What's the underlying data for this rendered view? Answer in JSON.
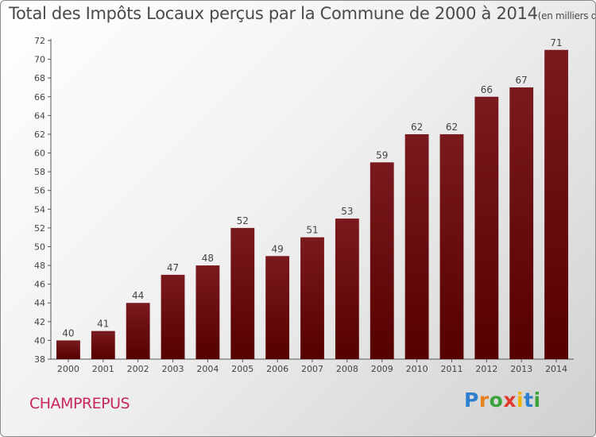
{
  "chart_data": {
    "type": "bar",
    "title": "Total des Impôts Locaux perçus par la Commune de 2000 à 2014",
    "subtitle": "(en milliers d'€)",
    "categories": [
      "2000",
      "2001",
      "2002",
      "2003",
      "2004",
      "2005",
      "2006",
      "2007",
      "2008",
      "2009",
      "2010",
      "2011",
      "2012",
      "2013",
      "2014"
    ],
    "values": [
      40,
      41,
      44,
      47,
      48,
      52,
      49,
      51,
      53,
      59,
      62,
      62,
      66,
      67,
      71
    ],
    "ylim": [
      38,
      72
    ],
    "yticks": [
      38,
      40,
      42,
      44,
      46,
      48,
      50,
      52,
      54,
      56,
      58,
      60,
      62,
      64,
      66,
      68,
      70,
      72
    ],
    "grid": false,
    "bar_color": "#7a1a1e",
    "bar_color_dark": "#560000"
  },
  "commune": "CHAMPREPUS",
  "logo": {
    "letters": [
      "P",
      "r",
      "o",
      "x",
      "i",
      "t",
      "i"
    ],
    "colors": [
      "#2e7fd0",
      "#e8811f",
      "#3aa33a",
      "#e23a2c",
      "#f2b300",
      "#2e7fd0",
      "#3aa33a"
    ]
  }
}
